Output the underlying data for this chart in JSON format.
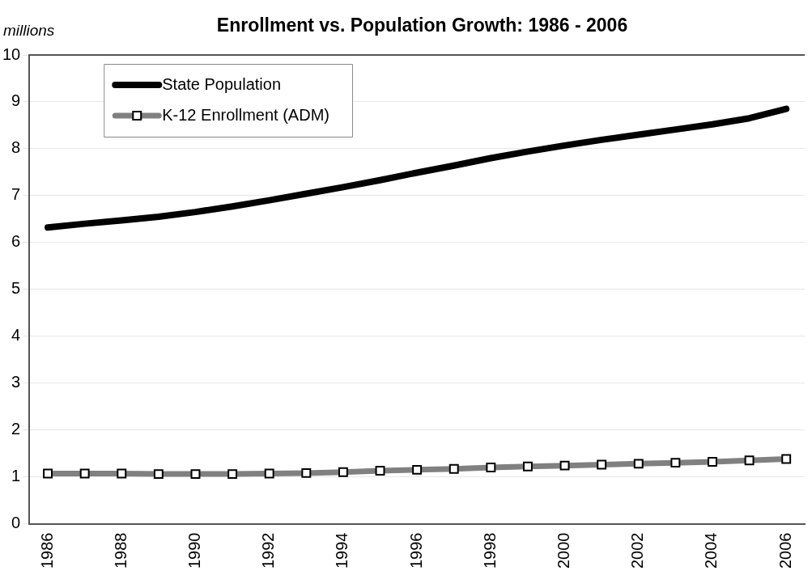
{
  "chart_data": {
    "type": "line",
    "title": "Enrollment vs. Population Growth: 1986 - 2006",
    "ylabel": "millions",
    "categories": [
      "1986",
      null,
      "1988",
      null,
      "1990",
      null,
      "1992",
      null,
      "1994",
      null,
      "1996",
      null,
      "1998",
      null,
      "2000",
      null,
      "2002",
      null,
      "2004",
      null,
      "2006"
    ],
    "series": [
      {
        "name": "State Population",
        "color": "#000000",
        "marker": "none",
        "values": [
          6.32,
          6.4,
          6.47,
          6.55,
          6.65,
          6.77,
          6.9,
          7.04,
          7.18,
          7.33,
          7.49,
          7.64,
          7.8,
          7.94,
          8.07,
          8.19,
          8.3,
          8.41,
          8.52,
          8.65,
          8.85
        ]
      },
      {
        "name": "K-12 Enrollment (ADM)",
        "color": "#808080",
        "marker": "square",
        "values": [
          1.07,
          1.07,
          1.07,
          1.06,
          1.06,
          1.06,
          1.07,
          1.08,
          1.1,
          1.13,
          1.15,
          1.17,
          1.2,
          1.22,
          1.24,
          1.26,
          1.28,
          1.3,
          1.32,
          1.35,
          1.38
        ]
      }
    ],
    "ylim": [
      0,
      10
    ],
    "yticks": [
      0,
      1,
      2,
      3,
      4,
      5,
      6,
      7,
      8,
      9,
      10
    ],
    "grid": "y",
    "legend": "top left",
    "line_style": "solid"
  }
}
